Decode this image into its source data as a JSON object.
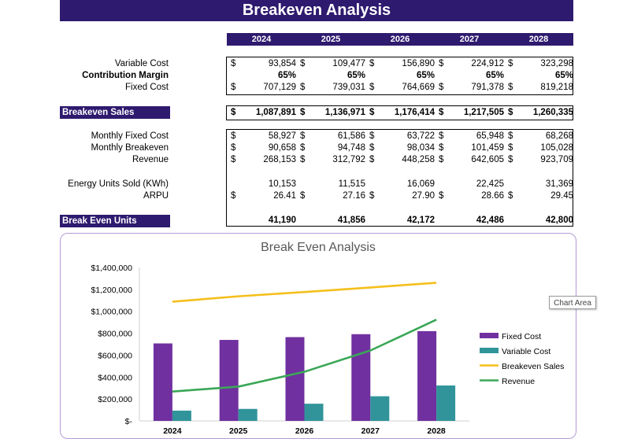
{
  "title": "Breakeven Analysis",
  "years": [
    "2024",
    "2025",
    "2026",
    "2027",
    "2028"
  ],
  "currency": "$",
  "rows": {
    "variable_cost": {
      "label": "Variable Cost",
      "values": [
        "93,854",
        "109,477",
        "156,890",
        "224,912",
        "323,298"
      ]
    },
    "contribution_margin": {
      "label": "Contribution Margin",
      "values": [
        "65%",
        "65%",
        "65%",
        "65%",
        "65%"
      ]
    },
    "fixed_cost": {
      "label": "Fixed Cost",
      "values": [
        "707,129",
        "739,031",
        "764,669",
        "791,378",
        "819,218"
      ]
    },
    "breakeven_sales": {
      "label": "Breakeven Sales",
      "values": [
        "1,087,891",
        "1,136,971",
        "1,176,414",
        "1,217,505",
        "1,260,335"
      ]
    },
    "monthly_fixed_cost": {
      "label": "Monthly Fixed Cost",
      "values": [
        "58,927",
        "61,586",
        "63,722",
        "65,948",
        "68,268"
      ]
    },
    "monthly_breakeven": {
      "label": "Monthly Breakeven",
      "values": [
        "90,658",
        "94,748",
        "98,034",
        "101,459",
        "105,028"
      ]
    },
    "revenue": {
      "label": "Revenue",
      "values": [
        "268,153",
        "312,792",
        "448,258",
        "642,605",
        "923,709"
      ]
    },
    "energy_units": {
      "label": "Energy Units Sold (KWh)",
      "values": [
        "10,153",
        "11,515",
        "16,069",
        "22,425",
        "31,369"
      ]
    },
    "arpu": {
      "label": "ARPU",
      "values": [
        "26.41",
        "27.16",
        "27.90",
        "28.66",
        "29.45"
      ]
    },
    "break_even_units": {
      "label": "Break Even Units",
      "values": [
        "41,190",
        "41,856",
        "42,172",
        "42,486",
        "42,800"
      ]
    }
  },
  "tooltip": "Chart Area",
  "chart_data": {
    "type": "bar",
    "title": "Break Even Analysis",
    "categories": [
      "2024",
      "2025",
      "2026",
      "2027",
      "2028"
    ],
    "ylim": [
      0,
      1400000
    ],
    "yticks": [
      "$-",
      "$200,000",
      "$400,000",
      "$600,000",
      "$800,000",
      "$1,000,000",
      "$1,200,000",
      "$1,400,000"
    ],
    "grid": false,
    "legend_position": "right",
    "series": [
      {
        "name": "Fixed Cost",
        "kind": "bar",
        "color": "#7030a0",
        "values": [
          707129,
          739031,
          764669,
          791378,
          819218
        ]
      },
      {
        "name": "Variable Cost",
        "kind": "bar",
        "color": "#31949b",
        "values": [
          93854,
          109477,
          156890,
          224912,
          323298
        ]
      },
      {
        "name": "Breakeven Sales",
        "kind": "line",
        "color": "#f5bf1b",
        "values": [
          1087891,
          1136971,
          1176414,
          1217505,
          1260335
        ]
      },
      {
        "name": "Revenue",
        "kind": "line",
        "color": "#3aa757",
        "values": [
          268153,
          312792,
          448258,
          642605,
          923709
        ]
      }
    ]
  }
}
